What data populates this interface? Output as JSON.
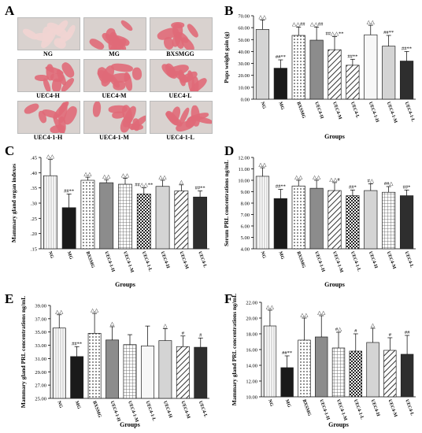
{
  "panel_letters": {
    "a": "A",
    "b": "B",
    "c": "C",
    "d": "D",
    "e": "E",
    "f": "F"
  },
  "photos": {
    "labels": [
      "NG",
      "MG",
      "BXSMGG",
      "UEC4-H",
      "UEC4-M",
      "UEC4-L",
      "UEC4-1-H",
      "UEC4-1-M",
      "UEC4-1-L"
    ]
  },
  "colors": {
    "bar_outline": "#222222",
    "dark_bar": "#1a1a1a",
    "photo_bg": "#d9d2cf",
    "pup_pink": "#e06a78"
  },
  "chart_data": [
    {
      "id": "B",
      "type": "bar",
      "xlabel": "Groups",
      "ylabel": "Pups weight gain (g)",
      "ylim": [
        0,
        70
      ],
      "yticks": [
        "0.00",
        "10.00",
        "20.00",
        "30.00",
        "40.00",
        "50.00",
        "60.00",
        "70.00"
      ],
      "categories": [
        "NG",
        "MG",
        "BXSMG",
        "UEC4-H",
        "UEC4-M",
        "UEC4-L",
        "UEC4-1-H",
        "UEC4-1-M",
        "UEC4-1-L"
      ],
      "values": [
        58.5,
        26,
        53.5,
        49.5,
        41.5,
        28.5,
        54,
        44.5,
        32
      ],
      "errors": [
        8,
        7,
        7,
        11,
        11,
        5,
        8,
        9,
        8
      ],
      "patterns": [
        "lightgray",
        "black",
        "dots",
        "gray",
        "diag",
        "diag",
        "white",
        "lightgray",
        "dark"
      ],
      "annotations": [
        "△△",
        "##**",
        "△△##",
        "△△##",
        "##△△**",
        "##**",
        "△△",
        "##**",
        "##**"
      ]
    },
    {
      "id": "C",
      "type": "bar",
      "xlabel": "Groups",
      "ylabel": "Mammary gland organ indexes",
      "ylim": [
        0.15,
        0.45
      ],
      "yticks": [
        ".15",
        ".20",
        ".25",
        ".30",
        ".35",
        ".40",
        ".45"
      ],
      "categories": [
        "NG",
        "MG",
        "BXSMG",
        "UEC4-1-H",
        "UEC4-1-M",
        "UEC4-1-L",
        "UEC4-H",
        "UEC4-M",
        "UEC4-L"
      ],
      "values": [
        0.39,
        0.285,
        0.375,
        0.367,
        0.362,
        0.33,
        0.355,
        0.34,
        0.32
      ],
      "errors": [
        0.053,
        0.045,
        0.01,
        0.01,
        0.02,
        0.02,
        0.02,
        0.02,
        0.02
      ],
      "patterns": [
        "vlines",
        "black",
        "dots",
        "gray",
        "grid",
        "checker",
        "lightgray",
        "diag",
        "dark"
      ],
      "annotations": [
        "△△",
        "##**",
        "△△",
        "△△",
        "△△",
        "##△△**",
        "△△",
        "△",
        "##**"
      ]
    },
    {
      "id": "D",
      "type": "bar",
      "xlabel": "Groups",
      "ylabel": "Serum PRL concentrations ng/mL",
      "ylim": [
        4,
        12
      ],
      "yticks": [
        "4.00",
        "5.00",
        "6.00",
        "7.00",
        "8.00",
        "9.00",
        "10.00",
        "11.00",
        "12.00"
      ],
      "categories": [
        "NG",
        "MG",
        "BXSMG",
        "UEC4-1-H",
        "UEC4-1-M",
        "UEC4-1-L",
        "UEC4-H",
        "UEC4-M",
        "UEC4-L"
      ],
      "values": [
        10.35,
        8.4,
        9.5,
        9.3,
        9.1,
        8.65,
        9.1,
        8.95,
        8.65
      ],
      "errors": [
        0.75,
        0.8,
        0.5,
        0.7,
        0.7,
        0.5,
        0.6,
        0.5,
        0.5
      ],
      "patterns": [
        "vlines",
        "black",
        "dots",
        "gray",
        "diag",
        "checker",
        "lightgray",
        "grid",
        "dark"
      ],
      "annotations": [
        "△△",
        "##**",
        "△△",
        "△△",
        "△△#",
        "##*",
        "#△",
        "##△",
        "##*"
      ]
    },
    {
      "id": "E",
      "type": "bar",
      "xlabel": "Groups",
      "ylabel": "Mammary gland PRL concentrations ng/mL",
      "ylim": [
        25,
        39
      ],
      "yticks": [
        "25.00",
        "27.00",
        "29.00",
        "31.00",
        "33.00",
        "35.00",
        "37.00",
        "39.00"
      ],
      "categories": [
        "NG",
        "MG",
        "BXSMG",
        "UEC4-1-H",
        "UEC4-1-M",
        "UEC4-1-L",
        "UEC4-H",
        "UEC4-M",
        "UEC4-L"
      ],
      "values": [
        35.6,
        31.3,
        34.8,
        33.8,
        33.1,
        32.9,
        33.7,
        32.8,
        32.7
      ],
      "errors": [
        2.0,
        1.5,
        3.0,
        2.0,
        1.5,
        3.0,
        1.8,
        1.6,
        1.4
      ],
      "patterns": [
        "vlines",
        "black",
        "dots",
        "gray",
        "grid",
        "white",
        "lightgray",
        "diag",
        "dark"
      ],
      "annotations": [
        "△△",
        "##**",
        "△△",
        "△",
        "",
        "",
        "△",
        "#",
        "#"
      ]
    },
    {
      "id": "F",
      "type": "bar",
      "xlabel": "Groups",
      "ylabel": "Mammary gland PRL concentrations ng/mL",
      "ylim": [
        10,
        22
      ],
      "yticks": [
        "10.00",
        "12.00",
        "14.00",
        "16.00",
        "18.00",
        "20.00",
        "22.00"
      ],
      "categories": [
        "NG",
        "MG",
        "BXSMG",
        "UEC4-1-H",
        "UEC4-1-M",
        "UEC4-1-L",
        "UEC4-H",
        "UEC4-M",
        "UEC4-L"
      ],
      "values": [
        19.0,
        13.7,
        17.2,
        17.6,
        16.2,
        15.8,
        16.9,
        15.9,
        15.4
      ],
      "errors": [
        2.0,
        1.5,
        2.8,
        2.7,
        2.0,
        2.2,
        1.8,
        1.6,
        2.4
      ],
      "patterns": [
        "vlines",
        "black",
        "dots",
        "gray",
        "grid",
        "checker",
        "lightgray",
        "diag",
        "dark"
      ],
      "annotations": [
        "△△",
        "##**",
        "△△",
        "△△",
        "#△",
        "#",
        "△",
        "#",
        "##"
      ]
    }
  ]
}
